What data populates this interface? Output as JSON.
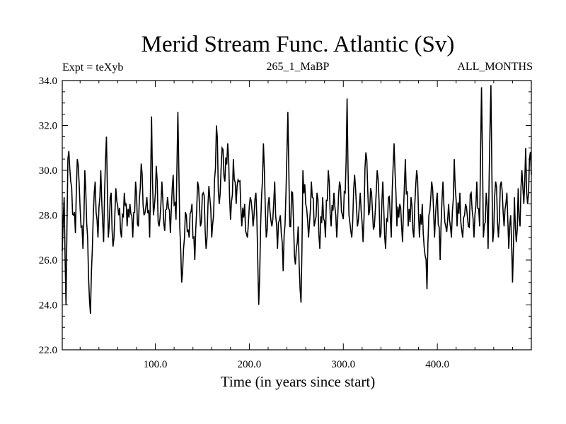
{
  "chart_data": {
    "type": "line",
    "title": "Merid Stream Func. Atlantic (Sv)",
    "subtitle_left": "Expt = teXyb",
    "subtitle_center": "265_1_MaBP",
    "subtitle_right": "ALL_MONTHS",
    "xlabel": "Time (in years since start)",
    "ylabel": "",
    "xlim": [
      1,
      500
    ],
    "ylim": [
      22.0,
      34.0
    ],
    "x_ticks": [
      100,
      200,
      300,
      400
    ],
    "x_tick_labels": [
      "100.0",
      "200.0",
      "300.0",
      "400.0"
    ],
    "y_ticks": [
      22,
      24,
      26,
      28,
      30,
      32,
      34
    ],
    "y_tick_labels": [
      "22.0",
      "24.0",
      "26.0",
      "28.0",
      "30.0",
      "32.0",
      "34.0"
    ],
    "grid": false,
    "series": [
      {
        "color": "#000000",
        "anchors": [
          [
            1,
            26.4
          ],
          [
            3,
            28.8
          ],
          [
            5,
            24.0
          ],
          [
            7,
            30.5
          ],
          [
            10,
            29.5
          ],
          [
            13,
            28.0
          ],
          [
            15,
            27.2
          ],
          [
            17,
            30.5
          ],
          [
            20,
            28.3
          ],
          [
            23,
            26.5
          ],
          [
            25,
            30.0
          ],
          [
            28,
            27.0
          ],
          [
            30,
            24.2
          ],
          [
            31,
            23.6
          ],
          [
            33,
            26.5
          ],
          [
            36,
            29.5
          ],
          [
            39,
            27.0
          ],
          [
            42,
            30.0
          ],
          [
            45,
            26.8
          ],
          [
            48,
            31.5
          ],
          [
            50,
            27.0
          ],
          [
            53,
            29.0
          ],
          [
            55,
            26.6
          ],
          [
            58,
            29.2
          ],
          [
            61,
            28.0
          ],
          [
            64,
            27.0
          ],
          [
            67,
            29.0
          ],
          [
            70,
            27.5
          ],
          [
            73,
            28.5
          ],
          [
            76,
            27.0
          ],
          [
            79,
            29.5
          ],
          [
            82,
            27.5
          ],
          [
            85,
            30.3
          ],
          [
            88,
            28.0
          ],
          [
            91,
            28.8
          ],
          [
            94,
            27.0
          ],
          [
            96,
            32.4
          ],
          [
            98,
            28.0
          ],
          [
            101,
            30.2
          ],
          [
            104,
            27.5
          ],
          [
            107,
            29.5
          ],
          [
            110,
            27.3
          ],
          [
            113,
            28.8
          ],
          [
            116,
            27.2
          ],
          [
            119,
            29.8
          ],
          [
            122,
            27.8
          ],
          [
            124,
            32.6
          ],
          [
            126,
            27.5
          ],
          [
            128,
            25.0
          ],
          [
            130,
            26.5
          ],
          [
            133,
            28.0
          ],
          [
            136,
            27.0
          ],
          [
            139,
            28.5
          ],
          [
            142,
            26.0
          ],
          [
            145,
            29.5
          ],
          [
            148,
            27.5
          ],
          [
            151,
            29.0
          ],
          [
            154,
            26.5
          ],
          [
            157,
            29.3
          ],
          [
            160,
            27.0
          ],
          [
            162,
            28.0
          ],
          [
            165,
            32.0
          ],
          [
            168,
            28.5
          ],
          [
            171,
            31.0
          ],
          [
            174,
            29.5
          ],
          [
            177,
            31.2
          ],
          [
            180,
            27.8
          ],
          [
            183,
            30.5
          ],
          [
            186,
            28.5
          ],
          [
            189,
            29.5
          ],
          [
            192,
            27.5
          ],
          [
            195,
            28.5
          ],
          [
            198,
            27.0
          ],
          [
            201,
            28.8
          ],
          [
            204,
            27.5
          ],
          [
            207,
            29.0
          ],
          [
            210,
            24.0
          ],
          [
            212,
            27.5
          ],
          [
            215,
            31.2
          ],
          [
            218,
            27.0
          ],
          [
            221,
            28.8
          ],
          [
            224,
            27.5
          ],
          [
            227,
            29.5
          ],
          [
            230,
            26.5
          ],
          [
            233,
            28.0
          ],
          [
            236,
            25.5
          ],
          [
            239,
            29.0
          ],
          [
            241,
            32.6
          ],
          [
            243,
            27.5
          ],
          [
            246,
            29.0
          ],
          [
            249,
            25.8
          ],
          [
            252,
            27.5
          ],
          [
            255,
            24.1
          ],
          [
            257,
            30.0
          ],
          [
            260,
            28.5
          ],
          [
            263,
            27.0
          ],
          [
            266,
            29.5
          ],
          [
            269,
            27.5
          ],
          [
            272,
            29.0
          ],
          [
            275,
            26.5
          ],
          [
            278,
            28.8
          ],
          [
            281,
            27.0
          ],
          [
            284,
            30.0
          ],
          [
            287,
            27.5
          ],
          [
            290,
            29.0
          ],
          [
            293,
            27.0
          ],
          [
            296,
            29.5
          ],
          [
            299,
            28.0
          ],
          [
            302,
            29.0
          ],
          [
            304,
            33.2
          ],
          [
            306,
            28.0
          ],
          [
            309,
            27.0
          ],
          [
            312,
            29.8
          ],
          [
            315,
            27.5
          ],
          [
            318,
            29.0
          ],
          [
            321,
            26.8
          ],
          [
            324,
            30.8
          ],
          [
            327,
            28.0
          ],
          [
            330,
            29.0
          ],
          [
            333,
            27.5
          ],
          [
            336,
            30.0
          ],
          [
            339,
            27.0
          ],
          [
            342,
            29.5
          ],
          [
            345,
            26.5
          ],
          [
            348,
            28.8
          ],
          [
            351,
            27.0
          ],
          [
            354,
            31.2
          ],
          [
            357,
            27.5
          ],
          [
            360,
            28.5
          ],
          [
            363,
            26.8
          ],
          [
            366,
            30.5
          ],
          [
            369,
            27.5
          ],
          [
            372,
            28.8
          ],
          [
            375,
            27.0
          ],
          [
            378,
            30.0
          ],
          [
            381,
            27.0
          ],
          [
            384,
            28.5
          ],
          [
            387,
            26.2
          ],
          [
            389,
            24.7
          ],
          [
            391,
            28.0
          ],
          [
            394,
            29.5
          ],
          [
            397,
            27.0
          ],
          [
            400,
            29.0
          ],
          [
            403,
            26.0
          ],
          [
            406,
            29.5
          ],
          [
            409,
            27.5
          ],
          [
            412,
            28.5
          ],
          [
            415,
            27.0
          ],
          [
            418,
            30.5
          ],
          [
            421,
            27.5
          ],
          [
            424,
            29.0
          ],
          [
            427,
            27.0
          ],
          [
            430,
            28.5
          ],
          [
            433,
            27.5
          ],
          [
            436,
            29.0
          ],
          [
            439,
            27.0
          ],
          [
            442,
            29.5
          ],
          [
            445,
            27.5
          ],
          [
            447,
            33.7
          ],
          [
            449,
            27.0
          ],
          [
            452,
            29.0
          ],
          [
            454,
            26.5
          ],
          [
            457,
            33.8
          ],
          [
            459,
            26.8
          ],
          [
            462,
            29.5
          ],
          [
            465,
            27.0
          ],
          [
            468,
            29.5
          ],
          [
            471,
            27.5
          ],
          [
            474,
            29.0
          ],
          [
            476,
            26.5
          ],
          [
            478,
            28.0
          ],
          [
            480,
            25.0
          ],
          [
            482,
            28.8
          ],
          [
            484,
            26.8
          ],
          [
            486,
            29.2
          ],
          [
            488,
            27.5
          ],
          [
            490,
            30.0
          ],
          [
            492,
            28.5
          ],
          [
            494,
            31.0
          ],
          [
            496,
            28.5
          ],
          [
            498,
            30.5
          ],
          [
            500,
            29.8
          ]
        ]
      }
    ]
  }
}
